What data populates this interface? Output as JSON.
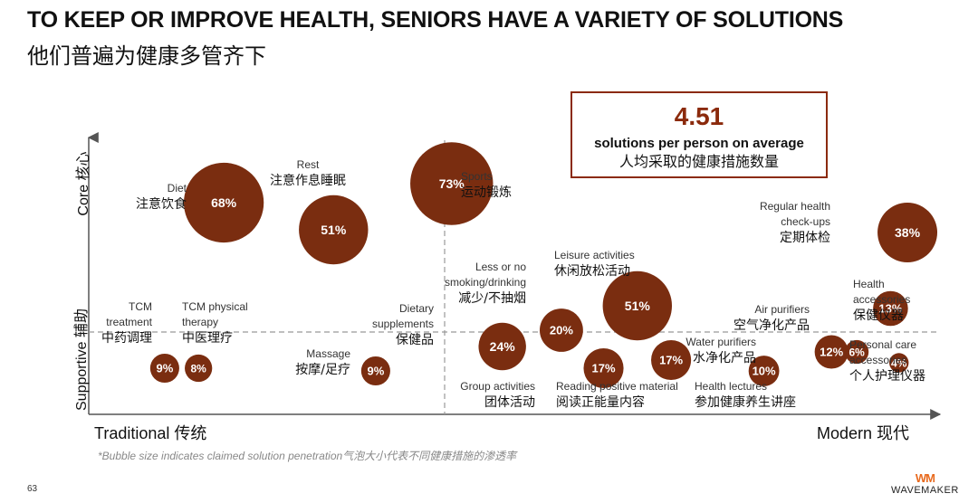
{
  "header": {
    "title": "TO KEEP OR IMPROVE HEALTH, SENIORS HAVE A VARIETY OF SOLUTIONS",
    "subtitle": "他们普遍为健康多管齐下"
  },
  "callout": {
    "value": "4.51",
    "label_en": "solutions per person on average",
    "label_zh": "人均采取的健康措施数量"
  },
  "axes": {
    "y_top": "Core 核心",
    "y_bottom": "Supportive 辅助",
    "x_left": "Traditional 传统",
    "x_right": "Modern 现代"
  },
  "footnote": "*Bubble size indicates claimed solution penetration气泡大小代表不同健康措施的渗透率",
  "page_number": "63",
  "brand": {
    "mark": "WM",
    "name": "WAVEMAKER"
  },
  "colors": {
    "bubble": "#7a2d10",
    "axis": "#555555",
    "divider": "#999999",
    "accent": "#8b2a0c"
  },
  "chart_data": {
    "type": "bubble",
    "title": "To keep or improve health, seniors have a variety of solutions",
    "x_axis": {
      "left": "Traditional",
      "right": "Modern",
      "range": [
        0,
        100
      ]
    },
    "y_axis": {
      "bottom": "Supportive",
      "top": "Core",
      "range": [
        0,
        100
      ]
    },
    "size_note": "Bubble size indicates claimed solution penetration",
    "points": [
      {
        "en": [
          "Diet"
        ],
        "zh": "注意饮食",
        "value": 68,
        "x": 16,
        "y": 78
      },
      {
        "en": [
          "Rest"
        ],
        "zh": "注意作息睡眠",
        "value": 51,
        "x": 29,
        "y": 68
      },
      {
        "en": [
          "Sports"
        ],
        "zh": "运动锻炼",
        "value": 73,
        "x": 43,
        "y": 85
      },
      {
        "en": [
          "Regular health",
          "check-ups"
        ],
        "zh": "定期体检",
        "value": 38,
        "x": 97,
        "y": 67
      },
      {
        "en": [
          "TCM",
          "treatment"
        ],
        "zh": "中药调理",
        "value": 9,
        "x": 9,
        "y": 17
      },
      {
        "en": [
          "TCM physical",
          "therapy"
        ],
        "zh": "中医理疗",
        "value": 8,
        "x": 13,
        "y": 17
      },
      {
        "en": [
          "Massage"
        ],
        "zh": "按摩/足疗",
        "value": 9,
        "x": 34,
        "y": 16
      },
      {
        "en": [
          "Dietary",
          "supplements"
        ],
        "zh": "保健品",
        "value": 24,
        "x": 49,
        "y": 25
      },
      {
        "en": [
          "Less or no",
          "smoking/drinking"
        ],
        "zh": "减少/不抽烟",
        "value": 20,
        "x": 56,
        "y": 31
      },
      {
        "en": [
          "Group activities"
        ],
        "zh": "团体活动",
        "value": 17,
        "x": 61,
        "y": 17
      },
      {
        "en": [
          "Leisure activities"
        ],
        "zh": "休闲放松活动",
        "value": 51,
        "x": 65,
        "y": 40
      },
      {
        "en": [
          "Reading positive material"
        ],
        "zh": "阅读正能量内容",
        "value": 17,
        "x": 69,
        "y": 20
      },
      {
        "en": [
          "Health lectures"
        ],
        "zh": "参加健康养生讲座",
        "value": 10,
        "x": 80,
        "y": 16
      },
      {
        "en": [
          "Water purifiers"
        ],
        "zh": "水净化产品",
        "value": 12,
        "x": 88,
        "y": 23
      },
      {
        "en": [
          "Air purifiers"
        ],
        "zh": "空气净化产品",
        "value": 6,
        "x": 91,
        "y": 23
      },
      {
        "en": [
          "Health",
          "accessories"
        ],
        "zh": "保健仪器",
        "value": 13,
        "x": 95,
        "y": 39
      },
      {
        "en": [
          "Personal care",
          "accessories"
        ],
        "zh": "个人护理仪器",
        "value": 4,
        "x": 96,
        "y": 19
      }
    ]
  }
}
